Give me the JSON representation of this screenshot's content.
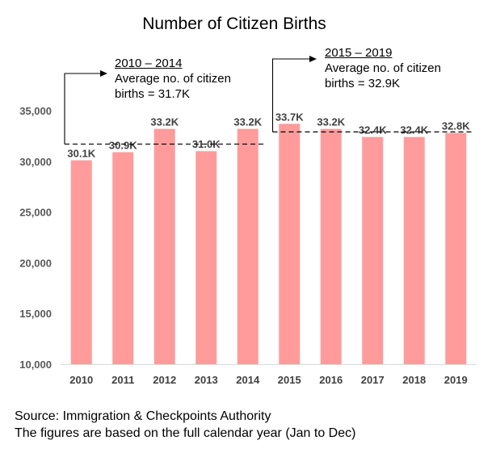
{
  "chart_data": {
    "type": "bar",
    "title": "Number of Citizen Births",
    "categories": [
      "2010",
      "2011",
      "2012",
      "2013",
      "2014",
      "2015",
      "2016",
      "2017",
      "2018",
      "2019"
    ],
    "values": [
      30100,
      30900,
      33200,
      31000,
      33200,
      33700,
      33200,
      32400,
      32400,
      32800
    ],
    "data_labels": [
      "30.1K",
      "30.9K",
      "33.2K",
      "31.0K",
      "33.2K",
      "33.7K",
      "33.2K",
      "32.4K",
      "32.4K",
      "32.8K"
    ],
    "ylim": [
      10000,
      35000
    ],
    "yticks": [
      10000,
      15000,
      20000,
      25000,
      30000,
      35000
    ],
    "ytick_labels": [
      "10,000",
      "15,000",
      "20,000",
      "25,000",
      "30,000",
      "35,000"
    ],
    "xlabel": "",
    "ylabel": "",
    "grid": false,
    "bar_color": "#FF9B9B",
    "reference_lines": [
      {
        "range": [
          "2010",
          "2014"
        ],
        "value": 31700,
        "heading": "2010 – 2014",
        "text_line1": "Average no. of citizen",
        "text_line2": "births = 31.7K"
      },
      {
        "range": [
          "2015",
          "2019"
        ],
        "value": 32900,
        "heading": "2015 – 2019",
        "text_line1": "Average no. of citizen",
        "text_line2": "births = 32.9K"
      }
    ]
  },
  "footer": {
    "source": "Source: Immigration & Checkpoints Authority",
    "note": "The figures are based on the full calendar year (Jan to Dec)"
  }
}
